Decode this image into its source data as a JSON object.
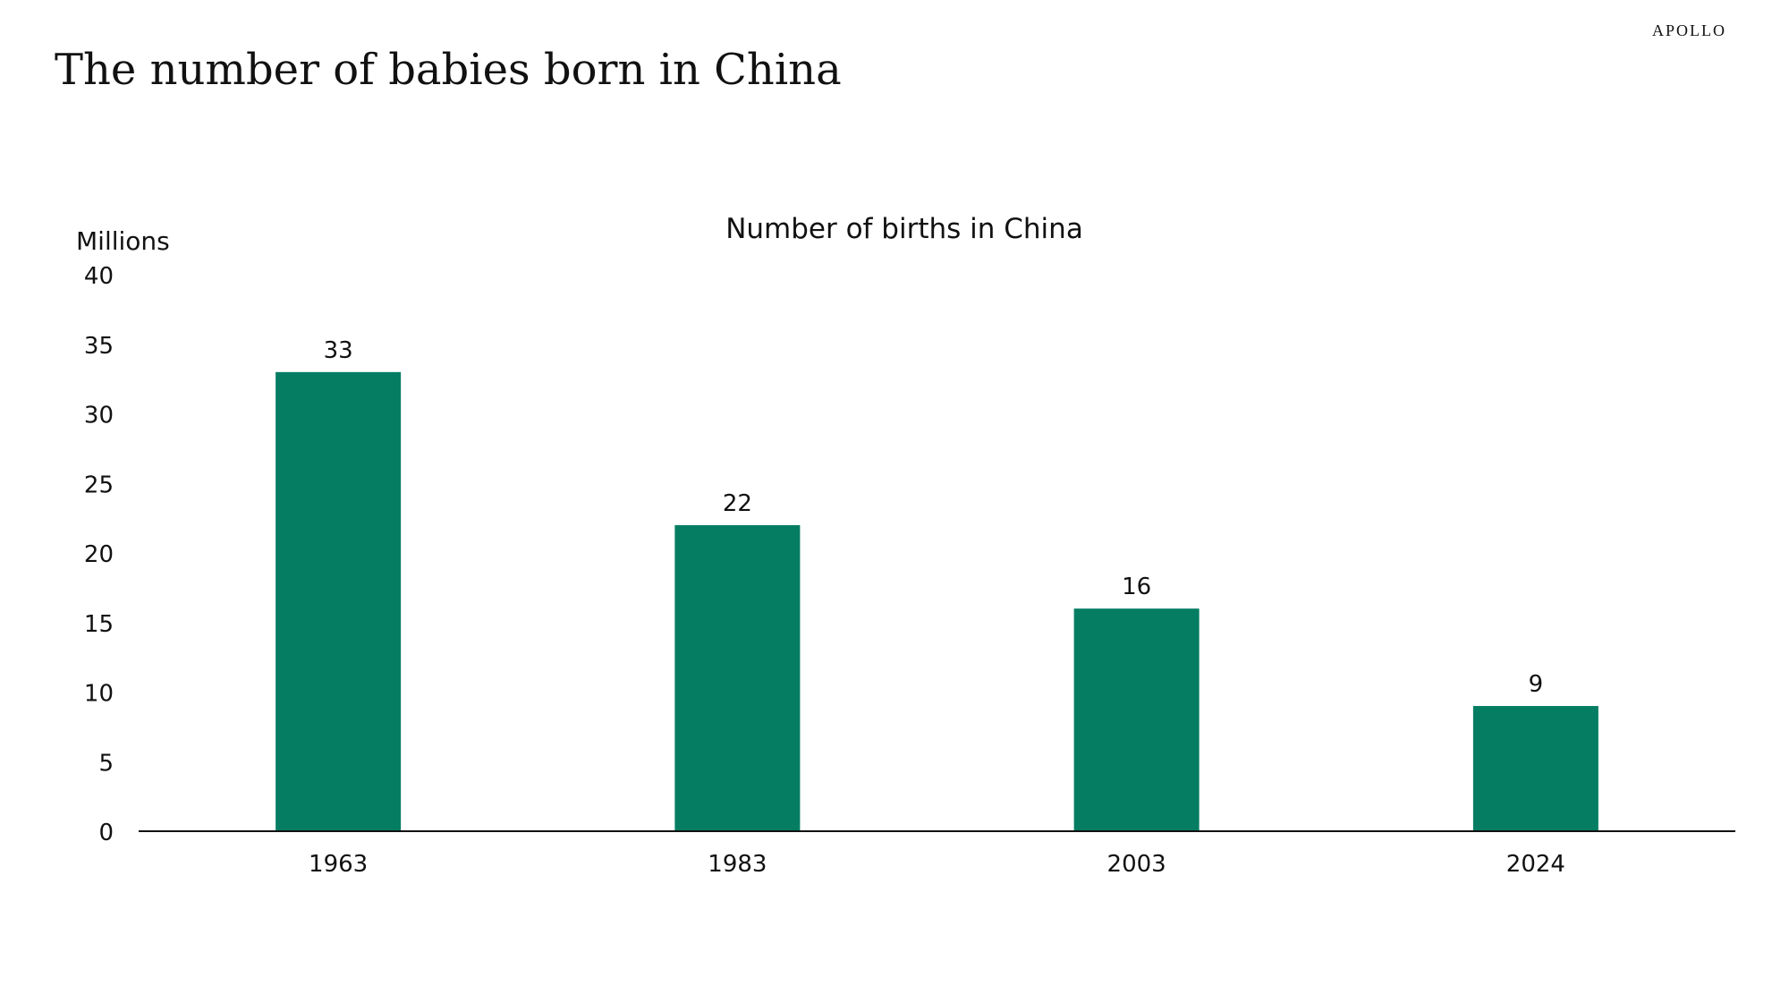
{
  "header": {
    "title": "The number of babies born in China",
    "brand": "APOLLO"
  },
  "colors": {
    "bar": "#047D63",
    "axis": "#111111"
  },
  "chart_data": {
    "type": "bar",
    "title": "Number of births in China",
    "ylabel": "Millions",
    "xlabel": "",
    "categories": [
      "1963",
      "1983",
      "2003",
      "2024"
    ],
    "values": [
      33,
      22,
      16,
      9
    ],
    "data_labels": [
      "33",
      "22",
      "16",
      "9"
    ],
    "ylim": [
      0,
      40
    ],
    "yticks": [
      0,
      5,
      10,
      15,
      20,
      25,
      30,
      35,
      40
    ],
    "grid": false,
    "legend": "none"
  }
}
